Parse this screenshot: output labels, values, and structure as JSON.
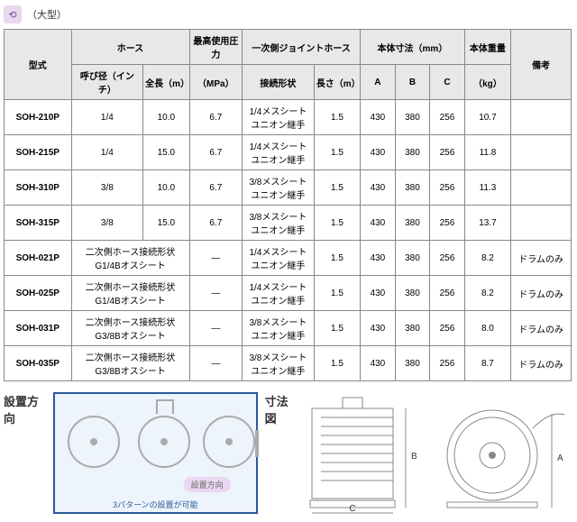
{
  "header": {
    "icon_glyph": "⟲",
    "size_label": "（大型）"
  },
  "table": {
    "headers": {
      "model": "型式",
      "hose": "ホース",
      "hose_diam": "呼び径（インチ）",
      "hose_len": "全長（m）",
      "max_press": "最高使用圧力",
      "press_unit": "（MPa）",
      "primary": "一次側ジョイントホース",
      "conn_shape": "接続形状",
      "p_len": "長さ（m）",
      "body_dim": "本体寸法（mm）",
      "A": "A",
      "B": "B",
      "C": "C",
      "weight": "本体重量",
      "weight_unit": "（kg）",
      "note": "備考"
    },
    "rows": [
      {
        "model": "SOH-210P",
        "diam": "1/4",
        "len": "10.0",
        "press": "6.7",
        "conn": "1/4メスシート\nユニオン継手",
        "plen": "1.5",
        "A": "430",
        "B": "380",
        "C": "256",
        "wt": "10.7",
        "note": ""
      },
      {
        "model": "SOH-215P",
        "diam": "1/4",
        "len": "15.0",
        "press": "6.7",
        "conn": "1/4メスシート\nユニオン継手",
        "plen": "1.5",
        "A": "430",
        "B": "380",
        "C": "256",
        "wt": "11.8",
        "note": ""
      },
      {
        "model": "SOH-310P",
        "diam": "3/8",
        "len": "10.0",
        "press": "6.7",
        "conn": "3/8メスシート\nユニオン継手",
        "plen": "1.5",
        "A": "430",
        "B": "380",
        "C": "256",
        "wt": "11.3",
        "note": ""
      },
      {
        "model": "SOH-315P",
        "diam": "3/8",
        "len": "15.0",
        "press": "6.7",
        "conn": "3/8メスシート\nユニオン継手",
        "plen": "1.5",
        "A": "430",
        "B": "380",
        "C": "256",
        "wt": "13.7",
        "note": ""
      },
      {
        "model": "SOH-021P",
        "diam_span": "二次側ホース接続形状\nG1/4Bオスシート",
        "press": "—",
        "conn": "1/4メスシート\nユニオン継手",
        "plen": "1.5",
        "A": "430",
        "B": "380",
        "C": "256",
        "wt": "8.2",
        "note": "ドラムのみ"
      },
      {
        "model": "SOH-025P",
        "diam_span": "二次側ホース接続形状\nG1/4Bオスシート",
        "press": "—",
        "conn": "1/4メスシート\nユニオン継手",
        "plen": "1.5",
        "A": "430",
        "B": "380",
        "C": "256",
        "wt": "8.2",
        "note": "ドラムのみ"
      },
      {
        "model": "SOH-031P",
        "diam_span": "二次側ホース接続形状\nG3/8Bオスシート",
        "press": "—",
        "conn": "3/8メスシート\nユニオン継手",
        "plen": "1.5",
        "A": "430",
        "B": "380",
        "C": "256",
        "wt": "8.0",
        "note": "ドラムのみ"
      },
      {
        "model": "SOH-035P",
        "diam_span": "二次側ホース接続形状\nG3/8Bオスシート",
        "press": "—",
        "conn": "3/8メスシート\nユニオン継手",
        "plen": "1.5",
        "A": "430",
        "B": "380",
        "C": "256",
        "wt": "8.7",
        "note": "ドラムのみ"
      }
    ]
  },
  "install": {
    "label": "設置方向",
    "chip": "設置方向",
    "caption": "3パターンの設置が可能"
  },
  "dim": {
    "label": "寸法図",
    "A": "A",
    "B": "B",
    "C": "C"
  },
  "style": {
    "header_bg": "#e8e8e8",
    "border": "#888888",
    "install_border": "#2a5a9a",
    "install_bg": "#eef4fb",
    "icon_bg": "#e8d8f0"
  }
}
